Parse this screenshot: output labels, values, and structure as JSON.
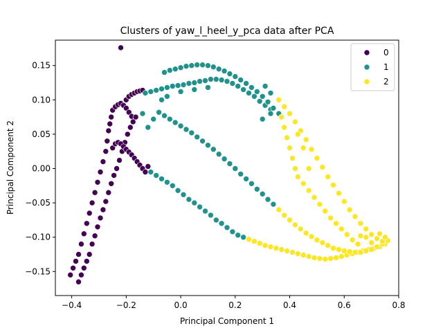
{
  "chart_data": {
    "type": "scatter",
    "title": "Clusters of yaw_l_heel_y_pca data after PCA",
    "xlabel": "Principal Component 1",
    "ylabel": "Principal Component 2",
    "xlim": [
      -0.46,
      0.8
    ],
    "ylim": [
      -0.185,
      0.187
    ],
    "xticks": [
      -0.4,
      -0.2,
      0.0,
      0.2,
      0.4,
      0.6,
      0.8
    ],
    "xtick_labels": [
      "−0.4",
      "−0.2",
      "0.0",
      "0.2",
      "0.4",
      "0.6",
      "0.8"
    ],
    "yticks": [
      -0.15,
      -0.1,
      -0.05,
      0.0,
      0.05,
      0.1,
      0.15
    ],
    "ytick_labels": [
      "−0.15",
      "−0.10",
      "−0.05",
      "0.00",
      "0.05",
      "0.10",
      "0.15"
    ],
    "grid": false,
    "legend_position": "top-right",
    "series": [
      {
        "name": "0",
        "color": "#440154",
        "points": [
          [
            -0.22,
            0.176
          ],
          [
            -0.405,
            -0.155
          ],
          [
            -0.395,
            -0.145
          ],
          [
            -0.385,
            -0.135
          ],
          [
            -0.375,
            -0.125
          ],
          [
            -0.365,
            -0.11
          ],
          [
            -0.355,
            -0.095
          ],
          [
            -0.345,
            -0.08
          ],
          [
            -0.335,
            -0.065
          ],
          [
            -0.325,
            -0.05
          ],
          [
            -0.315,
            -0.035
          ],
          [
            -0.305,
            -0.02
          ],
          [
            -0.295,
            -0.005
          ],
          [
            -0.285,
            0.01
          ],
          [
            -0.275,
            0.025
          ],
          [
            -0.27,
            0.04
          ],
          [
            -0.265,
            0.055
          ],
          [
            -0.26,
            0.065
          ],
          [
            -0.255,
            0.075
          ],
          [
            -0.25,
            0.085
          ],
          [
            -0.24,
            0.09
          ],
          [
            -0.23,
            0.093
          ],
          [
            -0.22,
            0.095
          ],
          [
            -0.21,
            0.092
          ],
          [
            -0.2,
            0.088
          ],
          [
            -0.19,
            0.082
          ],
          [
            -0.18,
            0.076
          ],
          [
            -0.375,
            -0.165
          ],
          [
            -0.365,
            -0.155
          ],
          [
            -0.355,
            -0.145
          ],
          [
            -0.345,
            -0.135
          ],
          [
            -0.335,
            -0.125
          ],
          [
            -0.325,
            -0.11
          ],
          [
            -0.315,
            -0.098
          ],
          [
            -0.305,
            -0.085
          ],
          [
            -0.295,
            -0.072
          ],
          [
            -0.285,
            -0.06
          ],
          [
            -0.275,
            -0.048
          ],
          [
            -0.265,
            -0.035
          ],
          [
            -0.255,
            -0.022
          ],
          [
            -0.245,
            -0.01
          ],
          [
            -0.235,
            0.0
          ],
          [
            -0.225,
            0.012
          ],
          [
            -0.215,
            0.025
          ],
          [
            -0.205,
            0.038
          ],
          [
            -0.195,
            0.05
          ],
          [
            -0.185,
            0.06
          ],
          [
            -0.175,
            0.068
          ],
          [
            -0.165,
            0.075
          ],
          [
            -0.25,
            0.03
          ],
          [
            -0.24,
            0.036
          ],
          [
            -0.23,
            0.038
          ],
          [
            -0.22,
            0.036
          ],
          [
            -0.21,
            0.032
          ],
          [
            -0.2,
            0.028
          ],
          [
            -0.19,
            0.024
          ],
          [
            -0.18,
            0.02
          ],
          [
            -0.17,
            0.015
          ],
          [
            -0.16,
            0.01
          ],
          [
            -0.15,
            0.005
          ],
          [
            -0.14,
            0.0
          ],
          [
            -0.13,
            -0.005
          ],
          [
            -0.12,
            0.003
          ],
          [
            -0.2,
            0.1
          ],
          [
            -0.19,
            0.105
          ],
          [
            -0.18,
            0.108
          ],
          [
            -0.17,
            0.11
          ],
          [
            -0.16,
            0.112
          ],
          [
            -0.15,
            0.113
          ],
          [
            -0.14,
            0.114
          ]
        ]
      },
      {
        "name": "1",
        "color": "#21918c",
        "points": [
          [
            -0.11,
            -0.005
          ],
          [
            -0.09,
            -0.01
          ],
          [
            -0.07,
            -0.015
          ],
          [
            -0.05,
            -0.02
          ],
          [
            -0.03,
            -0.025
          ],
          [
            -0.01,
            -0.032
          ],
          [
            0.01,
            -0.038
          ],
          [
            0.03,
            -0.045
          ],
          [
            0.05,
            -0.05
          ],
          [
            0.07,
            -0.056
          ],
          [
            0.09,
            -0.062
          ],
          [
            0.11,
            -0.068
          ],
          [
            0.13,
            -0.075
          ],
          [
            0.15,
            -0.08
          ],
          [
            0.17,
            -0.086
          ],
          [
            0.19,
            -0.092
          ],
          [
            0.21,
            -0.097
          ],
          [
            0.23,
            -0.1
          ],
          [
            -0.08,
            0.082
          ],
          [
            -0.06,
            0.077
          ],
          [
            -0.04,
            0.072
          ],
          [
            -0.02,
            0.067
          ],
          [
            0.0,
            0.062
          ],
          [
            0.02,
            0.057
          ],
          [
            0.04,
            0.052
          ],
          [
            0.06,
            0.046
          ],
          [
            0.08,
            0.04
          ],
          [
            0.1,
            0.034
          ],
          [
            0.12,
            0.028
          ],
          [
            0.14,
            0.021
          ],
          [
            0.16,
            0.014
          ],
          [
            0.18,
            0.007
          ],
          [
            0.2,
            0.0
          ],
          [
            0.22,
            -0.008
          ],
          [
            0.24,
            -0.015
          ],
          [
            0.26,
            -0.022
          ],
          [
            0.28,
            -0.03
          ],
          [
            0.3,
            -0.037
          ],
          [
            0.32,
            -0.045
          ],
          [
            0.34,
            -0.052
          ],
          [
            -0.13,
            0.11
          ],
          [
            -0.11,
            0.112
          ],
          [
            -0.09,
            0.114
          ],
          [
            -0.07,
            0.116
          ],
          [
            -0.05,
            0.118
          ],
          [
            -0.03,
            0.12
          ],
          [
            -0.01,
            0.121
          ],
          [
            0.01,
            0.122
          ],
          [
            0.03,
            0.124
          ],
          [
            0.05,
            0.125
          ],
          [
            0.07,
            0.127
          ],
          [
            0.09,
            0.128
          ],
          [
            0.11,
            0.13
          ],
          [
            0.13,
            0.13
          ],
          [
            0.15,
            0.129
          ],
          [
            0.17,
            0.127
          ],
          [
            0.19,
            0.124
          ],
          [
            0.21,
            0.12
          ],
          [
            0.23,
            0.115
          ],
          [
            0.25,
            0.11
          ],
          [
            0.27,
            0.105
          ],
          [
            0.29,
            0.098
          ],
          [
            0.31,
            0.092
          ],
          [
            0.33,
            0.086
          ],
          [
            -0.06,
            0.14
          ],
          [
            -0.04,
            0.143
          ],
          [
            -0.02,
            0.145
          ],
          [
            0.0,
            0.147
          ],
          [
            0.02,
            0.149
          ],
          [
            0.04,
            0.15
          ],
          [
            0.06,
            0.151
          ],
          [
            0.08,
            0.151
          ],
          [
            0.1,
            0.15
          ],
          [
            0.12,
            0.148
          ],
          [
            0.14,
            0.145
          ],
          [
            0.16,
            0.142
          ],
          [
            0.18,
            0.138
          ],
          [
            0.2,
            0.134
          ],
          [
            0.22,
            0.129
          ],
          [
            0.24,
            0.124
          ],
          [
            0.26,
            0.118
          ],
          [
            0.28,
            0.112
          ],
          [
            0.3,
            0.105
          ],
          [
            0.32,
            0.097
          ],
          [
            0.34,
            0.088
          ],
          [
            0.36,
            0.08
          ],
          [
            -0.1,
            0.072
          ],
          [
            -0.12,
            0.06
          ],
          [
            -0.14,
            0.08
          ],
          [
            -0.07,
            0.1
          ],
          [
            -0.05,
            0.105
          ],
          [
            0.0,
            0.112
          ],
          [
            0.05,
            0.115
          ],
          [
            0.1,
            0.118
          ],
          [
            0.33,
            0.08
          ],
          [
            0.3,
            0.072
          ],
          [
            0.31,
            0.12
          ],
          [
            0.33,
            0.11
          ]
        ]
      },
      {
        "name": "2",
        "color": "#fde725",
        "points": [
          [
            0.25,
            -0.103
          ],
          [
            0.27,
            -0.106
          ],
          [
            0.29,
            -0.109
          ],
          [
            0.31,
            -0.112
          ],
          [
            0.33,
            -0.114
          ],
          [
            0.35,
            -0.116
          ],
          [
            0.37,
            -0.118
          ],
          [
            0.39,
            -0.12
          ],
          [
            0.41,
            -0.122
          ],
          [
            0.43,
            -0.124
          ],
          [
            0.45,
            -0.126
          ],
          [
            0.47,
            -0.128
          ],
          [
            0.49,
            -0.13
          ],
          [
            0.51,
            -0.131
          ],
          [
            0.53,
            -0.132
          ],
          [
            0.55,
            -0.131
          ],
          [
            0.57,
            -0.13
          ],
          [
            0.59,
            -0.128
          ],
          [
            0.61,
            -0.126
          ],
          [
            0.63,
            -0.124
          ],
          [
            0.65,
            -0.122
          ],
          [
            0.67,
            -0.12
          ],
          [
            0.69,
            -0.118
          ],
          [
            0.71,
            -0.116
          ],
          [
            0.73,
            -0.114
          ],
          [
            0.75,
            -0.11
          ],
          [
            0.36,
            -0.06
          ],
          [
            0.38,
            -0.068
          ],
          [
            0.4,
            -0.075
          ],
          [
            0.42,
            -0.082
          ],
          [
            0.44,
            -0.088
          ],
          [
            0.46,
            -0.094
          ],
          [
            0.48,
            -0.099
          ],
          [
            0.5,
            -0.104
          ],
          [
            0.52,
            -0.108
          ],
          [
            0.54,
            -0.112
          ],
          [
            0.56,
            -0.116
          ],
          [
            0.58,
            -0.118
          ],
          [
            0.6,
            -0.12
          ],
          [
            0.62,
            -0.121
          ],
          [
            0.64,
            -0.122
          ],
          [
            0.66,
            -0.122
          ],
          [
            0.68,
            -0.12
          ],
          [
            0.7,
            -0.118
          ],
          [
            0.72,
            -0.114
          ],
          [
            0.74,
            -0.11
          ],
          [
            0.76,
            -0.105
          ],
          [
            0.37,
            0.075
          ],
          [
            0.38,
            0.06
          ],
          [
            0.39,
            0.045
          ],
          [
            0.4,
            0.03
          ],
          [
            0.41,
            0.015
          ],
          [
            0.42,
            0.0
          ],
          [
            0.43,
            -0.012
          ],
          [
            0.45,
            -0.022
          ],
          [
            0.47,
            -0.032
          ],
          [
            0.49,
            -0.042
          ],
          [
            0.51,
            -0.052
          ],
          [
            0.53,
            -0.062
          ],
          [
            0.55,
            -0.072
          ],
          [
            0.57,
            -0.08
          ],
          [
            0.59,
            -0.088
          ],
          [
            0.61,
            -0.096
          ],
          [
            0.63,
            -0.104
          ],
          [
            0.65,
            -0.11
          ],
          [
            0.36,
            0.1
          ],
          [
            0.38,
            0.09
          ],
          [
            0.4,
            0.08
          ],
          [
            0.42,
            0.068
          ],
          [
            0.44,
            0.055
          ],
          [
            0.46,
            0.042
          ],
          [
            0.48,
            0.028
          ],
          [
            0.5,
            0.015
          ],
          [
            0.52,
            0.002
          ],
          [
            0.54,
            -0.012
          ],
          [
            0.56,
            -0.024
          ],
          [
            0.58,
            -0.036
          ],
          [
            0.6,
            -0.048
          ],
          [
            0.62,
            -0.06
          ],
          [
            0.64,
            -0.07
          ],
          [
            0.66,
            -0.08
          ],
          [
            0.68,
            -0.088
          ],
          [
            0.7,
            -0.096
          ],
          [
            0.72,
            -0.102
          ],
          [
            0.74,
            -0.106
          ],
          [
            0.43,
            0.05
          ],
          [
            0.45,
            0.03
          ],
          [
            0.47,
            0.0
          ],
          [
            0.68,
            -0.1
          ],
          [
            0.7,
            -0.108
          ],
          [
            0.66,
            -0.098
          ],
          [
            0.75,
            -0.1
          ],
          [
            0.73,
            -0.095
          ]
        ]
      }
    ]
  }
}
